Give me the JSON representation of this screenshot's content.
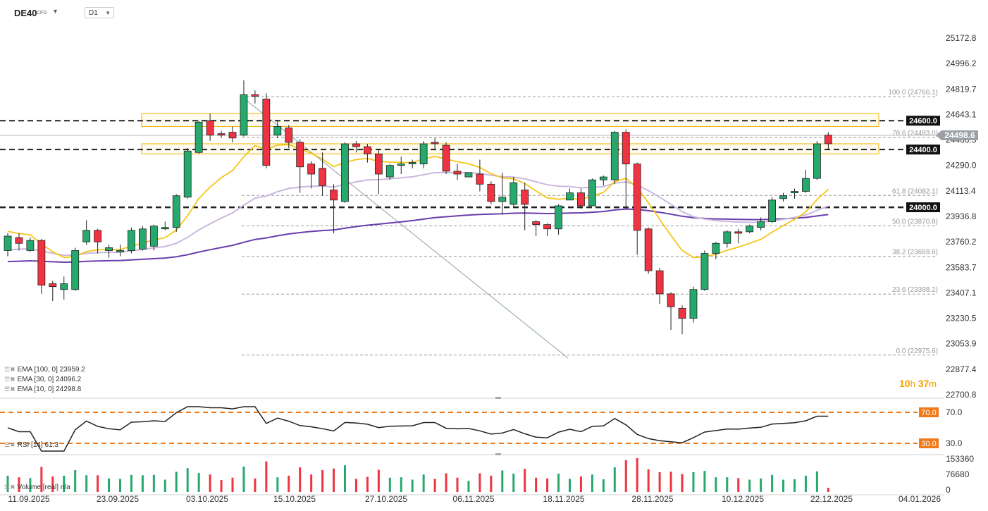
{
  "header": {
    "symbol": "DE40",
    "symbol_type": "CFD",
    "timeframe": "D1"
  },
  "price_axis": [
    "25172.8",
    "24996.2",
    "24819.7",
    "24643.1",
    "24466.5",
    "24290.0",
    "24113.4",
    "23936.8",
    "23760.2",
    "23583.7",
    "23407.1",
    "23230.5",
    "23053.9",
    "22877.4",
    "22700.8"
  ],
  "date_axis": [
    "11.09.2025",
    "23.09.2025",
    "03.10.2025",
    "15.10.2025",
    "27.10.2025",
    "06.11.2025",
    "18.11.2025",
    "28.11.2025",
    "10.12.2025",
    "22.12.2025",
    "04.01.2026"
  ],
  "horizontal_levels": [
    {
      "label": "24600.0",
      "color": "#222222"
    },
    {
      "label": "24400.0",
      "color": "#222222"
    },
    {
      "label": "24000.0",
      "color": "#222222"
    }
  ],
  "current_price": {
    "label": "24498.6",
    "color": "#9aa0a6"
  },
  "fibonacci": [
    "100.0 (24766.1)",
    "78.6 (24483.0)",
    "61.8 (24082.1)",
    "50.0 (23870.8)",
    "38.2 (23659.6)",
    "23.6 (23398.2)",
    "0.0 (22975.6)"
  ],
  "indicators": {
    "ema100": "EMA [100, 0] 23959.2",
    "ema30": "EMA [30, 0] 24096.2",
    "ema10": "EMA [10, 0] 24298.8"
  },
  "countdown": {
    "hours": "10",
    "h": "h",
    "minutes": "37",
    "m": "m"
  },
  "rsi": {
    "label": "RSI [14] 61.3",
    "upper": "70.0",
    "lower": "30.0",
    "axis_upper": "70.0",
    "axis_lower": "30.0"
  },
  "volume": {
    "label": "Volume [real] n/a",
    "axis": [
      "153360",
      "76680",
      "0"
    ]
  },
  "colors": {
    "up": "#26a96c",
    "down": "#ef3340",
    "ema10": "#f5c518",
    "ema30": "#c9b8dd",
    "ema100": "#6a3dad",
    "zone": "#f0b400",
    "rsi_level": "#f07a1a"
  },
  "chart_data": {
    "type": "candlestick",
    "timeframe": "D1",
    "x": [
      "11.09.2025",
      "12.09.2025",
      "15.09.2025",
      "16.09.2025",
      "17.09.2025",
      "18.09.2025",
      "19.09.2025",
      "22.09.2025",
      "23.09.2025",
      "24.09.2025",
      "25.09.2025",
      "26.09.2025",
      "29.09.2025",
      "30.09.2025",
      "01.10.2025",
      "02.10.2025",
      "03.10.2025",
      "06.10.2025",
      "07.10.2025",
      "08.10.2025",
      "09.10.2025",
      "10.10.2025",
      "13.10.2025",
      "14.10.2025",
      "15.10.2025",
      "16.10.2025",
      "17.10.2025",
      "20.10.2025",
      "21.10.2025",
      "22.10.2025",
      "23.10.2025",
      "24.10.2025",
      "27.10.2025",
      "28.10.2025",
      "29.10.2025",
      "30.10.2025",
      "31.10.2025",
      "03.11.2025",
      "04.11.2025",
      "05.11.2025",
      "06.11.2025",
      "07.11.2025",
      "10.11.2025",
      "11.11.2025",
      "12.11.2025",
      "13.11.2025",
      "14.11.2025",
      "17.11.2025",
      "18.11.2025",
      "19.11.2025",
      "20.11.2025",
      "21.11.2025",
      "24.11.2025",
      "25.11.2025",
      "26.11.2025",
      "27.11.2025",
      "28.11.2025",
      "01.12.2025",
      "02.12.2025",
      "03.12.2025",
      "04.12.2025",
      "05.12.2025",
      "08.12.2025",
      "09.12.2025",
      "10.12.2025",
      "11.12.2025",
      "12.12.2025",
      "15.12.2025",
      "16.12.2025",
      "17.12.2025",
      "18.12.2025",
      "19.12.2025",
      "22.12.2025",
      "23.12.2025"
    ],
    "ohlc": [
      [
        23700,
        23800,
        23660,
        23820
      ],
      [
        23790,
        23750,
        23700,
        23820
      ],
      [
        23700,
        23770,
        23690,
        23790
      ],
      [
        23770,
        23460,
        23400,
        23780
      ],
      [
        23470,
        23450,
        23350,
        23490
      ],
      [
        23430,
        23470,
        23360,
        23520
      ],
      [
        23430,
        23700,
        23420,
        23720
      ],
      [
        23760,
        23840,
        23740,
        23910
      ],
      [
        23840,
        23760,
        23680,
        23850
      ],
      [
        23700,
        23720,
        23650,
        23740
      ],
      [
        23700,
        23700,
        23660,
        23740
      ],
      [
        23700,
        23840,
        23680,
        23860
      ],
      [
        23710,
        23850,
        23700,
        23870
      ],
      [
        23730,
        23870,
        23700,
        23880
      ],
      [
        23860,
        23860,
        23840,
        23900
      ],
      [
        23860,
        24080,
        23830,
        24090
      ],
      [
        24070,
        24390,
        24060,
        24410
      ],
      [
        24380,
        24590,
        24370,
        24600
      ],
      [
        24600,
        24500,
        24460,
        24650
      ],
      [
        24510,
        24500,
        24480,
        24530
      ],
      [
        24520,
        24480,
        24450,
        24560
      ],
      [
        24500,
        24780,
        24490,
        24880
      ],
      [
        24780,
        24770,
        24720,
        24810
      ],
      [
        24750,
        24290,
        24270,
        24790
      ],
      [
        24500,
        24560,
        24480,
        24600
      ],
      [
        24550,
        24450,
        24410,
        24570
      ],
      [
        24450,
        24280,
        24100,
        24470
      ],
      [
        24300,
        24230,
        24130,
        24320
      ],
      [
        24270,
        24150,
        24080,
        24380
      ],
      [
        24120,
        24050,
        23820,
        24160
      ],
      [
        24040,
        24440,
        24030,
        24450
      ],
      [
        24440,
        24420,
        24380,
        24460
      ],
      [
        24420,
        24370,
        24310,
        24440
      ],
      [
        24370,
        24230,
        24090,
        24400
      ],
      [
        24210,
        24290,
        24190,
        24300
      ],
      [
        24290,
        24300,
        24230,
        24350
      ],
      [
        24310,
        24310,
        24270,
        24330
      ],
      [
        24300,
        24440,
        24270,
        24460
      ],
      [
        24450,
        24440,
        24400,
        24480
      ],
      [
        24430,
        24250,
        24230,
        24450
      ],
      [
        24250,
        24230,
        24190,
        24300
      ],
      [
        24210,
        24240,
        24210,
        24240
      ],
      [
        24230,
        24160,
        24110,
        24330
      ],
      [
        24160,
        24040,
        24020,
        24180
      ],
      [
        24040,
        24070,
        23950,
        24240
      ],
      [
        24020,
        24170,
        24000,
        24210
      ],
      [
        24120,
        24020,
        23840,
        24170
      ],
      [
        23900,
        23880,
        23800,
        23910
      ],
      [
        23880,
        23850,
        23800,
        23890
      ],
      [
        23850,
        24010,
        23810,
        24020
      ],
      [
        24050,
        24100,
        24050,
        24130
      ],
      [
        24100,
        24010,
        23990,
        24130
      ],
      [
        24010,
        24190,
        24010,
        24200
      ],
      [
        24190,
        24210,
        24150,
        24220
      ],
      [
        24190,
        24520,
        24160,
        24530
      ],
      [
        24520,
        24300,
        23990,
        24540
      ],
      [
        24300,
        23840,
        23670,
        24310
      ],
      [
        23850,
        23560,
        23540,
        23860
      ],
      [
        23560,
        23400,
        23330,
        23580
      ],
      [
        23400,
        23310,
        23150,
        23410
      ],
      [
        23300,
        23230,
        23120,
        23320
      ],
      [
        23230,
        23430,
        23200,
        23450
      ],
      [
        23430,
        23680,
        23420,
        23700
      ],
      [
        23680,
        23750,
        23640,
        23760
      ],
      [
        23750,
        23830,
        23720,
        23840
      ],
      [
        23830,
        23820,
        23750,
        23850
      ],
      [
        23830,
        23870,
        23820,
        23880
      ],
      [
        23860,
        23900,
        23840,
        23930
      ],
      [
        23900,
        24050,
        23890,
        24070
      ],
      [
        24060,
        24080,
        24040,
        24100
      ],
      [
        24100,
        24110,
        24060,
        24130
      ],
      [
        24110,
        24200,
        24100,
        24260
      ],
      [
        24200,
        24440,
        24190,
        24460
      ],
      [
        24500,
        24440,
        24400,
        24520
      ]
    ]
  }
}
